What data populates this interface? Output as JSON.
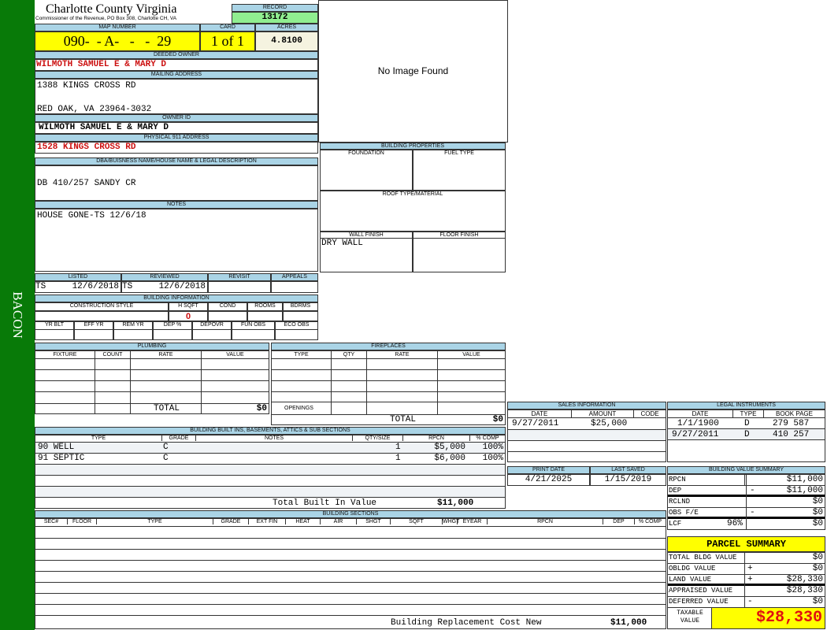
{
  "sidebar": {
    "label": "BACON",
    "color": "#087a08"
  },
  "header": {
    "title": "Charlotte County Virginia",
    "subtitle": "Commissioner of the Revenue, PO Box 308, Charlotte CH, VA",
    "record_label": "RECORD",
    "record": "13172"
  },
  "map": {
    "map_label": "MAP NUMBER",
    "map_number": "090-  - A-   -   -  29",
    "card_label": "CARD",
    "card": "1 of 1",
    "acres_label": "ACRES",
    "acres": "4.8100"
  },
  "owner": {
    "deeded_label": "DEEDED OWNER",
    "deeded": "WILMOTH SAMUEL E & MARY D",
    "mailing_label": "MAILING ADDRESS",
    "mail1": "1388 KINGS CROSS RD",
    "mail2": "RED OAK, VA 23964-3032",
    "id_label": "OWNER ID",
    "owner_id": "WILMOTH SAMUEL E & MARY D",
    "physical_label": "PHYSICAL 911 ADDRESS",
    "physical": "1528 KINGS CROSS RD"
  },
  "image": {
    "text": "No Image Found"
  },
  "dba": {
    "label": "DBA/BUISNESS NAME/HOUSE NAME & LEGAL DESCRIPTION",
    "value": "DB 410/257 SANDY CR"
  },
  "notes": {
    "label": "NOTES",
    "value": "HOUSE GONE-TS 12/6/18"
  },
  "props": {
    "title": "BUILDING PROPERTIES",
    "foundation": "FOUNDATION",
    "fuel": "FUEL TYPE",
    "roof": "ROOF TYPE/MATERIAL",
    "wall": "WALL FINISH",
    "floor": "FLOOR FINISH",
    "wall_value": "DRY WALL"
  },
  "review": {
    "listed": "LISTED",
    "reviewed": "REVIEWED",
    "revisit": "REVISIT",
    "appeals": "APPEALS",
    "listed_by": "TS",
    "listed_date": "12/6/2018",
    "reviewed_by": "TS",
    "reviewed_date": "12/6/2018"
  },
  "bldg": {
    "title": "BUILDING INFORMATION",
    "cols1": [
      "CONSTRUCTION STYLE",
      "H SQFT",
      "COND",
      "ROOMS",
      "BDRMS"
    ],
    "hsqft": "0",
    "cols2": [
      "YR BLT",
      "EFF YR",
      "REM YR",
      "DEP %",
      "DEPOVR",
      "FUN OBS",
      "ECO OBS"
    ]
  },
  "plumbing": {
    "title": "PLUMBING",
    "cols": [
      "FIXTURE",
      "COUNT",
      "RATE",
      "VALUE"
    ],
    "total_label": "TOTAL",
    "total": "$0"
  },
  "fireplaces": {
    "title": "FIREPLACES",
    "cols": [
      "TYPE",
      "QTY",
      "RATE",
      "VALUE"
    ],
    "openings": "OPENINGS",
    "total_label": "TOTAL",
    "total": "$0"
  },
  "builtins": {
    "title": "BUILDING BUILT INS, BASEMENTS, ATTICS & SUB SECTIONS",
    "cols": [
      "TYPE",
      "GRADE",
      "NOTES",
      "QTY/SIZE",
      "RPCN",
      "% COMP"
    ],
    "rows": [
      {
        "type": "90 WELL",
        "grade": "C",
        "qty": "1",
        "rpcn": "$5,000",
        "comp": "100%"
      },
      {
        "type": "91 SEPTIC",
        "grade": "C",
        "qty": "1",
        "rpcn": "$6,000",
        "comp": "100%"
      }
    ],
    "total_label": "Total Built In Value",
    "total": "$11,000"
  },
  "sections": {
    "title": "BUILDING SECTIONS",
    "cols": [
      "SEC#",
      "FLOOR",
      "TYPE",
      "GRADE",
      "EXT FIN",
      "HEAT",
      "AIR",
      "SHGT",
      "SQFT",
      "WHGT",
      "EYEAR",
      "RPCN",
      "DEP",
      "% COMP"
    ],
    "total_label": "Building Replacement Cost New",
    "total": "$11,000"
  },
  "sales": {
    "title": "SALES INFORMATION",
    "cols": [
      "DATE",
      "AMOUNT",
      "CODE"
    ],
    "rows": [
      {
        "date": "9/27/2011",
        "amount": "$25,000"
      }
    ]
  },
  "dates": {
    "print_label": "PRINT DATE",
    "print": "4/21/2025",
    "saved_label": "LAST SAVED",
    "saved": "1/15/2019"
  },
  "legal": {
    "title": "LEGAL INSTRUMENTS",
    "cols": [
      "DATE",
      "TYPE",
      "BOOK PAGE"
    ],
    "rows": [
      {
        "date": "1/1/1900",
        "type": "D",
        "book": "279 587"
      },
      {
        "date": "9/27/2011",
        "type": "D",
        "book": "410 257"
      }
    ]
  },
  "bvs": {
    "title": "BUILDING VALUE SUMMARY",
    "rows": [
      {
        "label": "RPCN",
        "sign": "",
        "value": "$11,000"
      },
      {
        "label": "DEP",
        "sign": "-",
        "value": "$11,000"
      },
      {
        "label": "RCLND",
        "sign": "",
        "value": "$0"
      },
      {
        "label": "OBS F/E",
        "sign": "-",
        "value": "$0"
      },
      {
        "label": "LCF",
        "pct": "96%",
        "sign": "",
        "value": "$0"
      }
    ]
  },
  "parcel": {
    "title": "PARCEL SUMMARY",
    "rows": [
      {
        "label": "TOTAL BLDG VALUE",
        "sign": "",
        "value": "$0"
      },
      {
        "label": "OBLDG VALUE",
        "sign": "+",
        "value": "$0"
      },
      {
        "label": "LAND VALUE",
        "sign": "+",
        "value": "$28,330"
      },
      {
        "label": "APPRAISED VALUE",
        "sign": "",
        "value": "$28,330"
      },
      {
        "label": "DEFERRED VALUE",
        "sign": "-",
        "value": "$0"
      }
    ],
    "taxable_label": "TAXABLE VALUE",
    "taxable": "$28,330"
  }
}
